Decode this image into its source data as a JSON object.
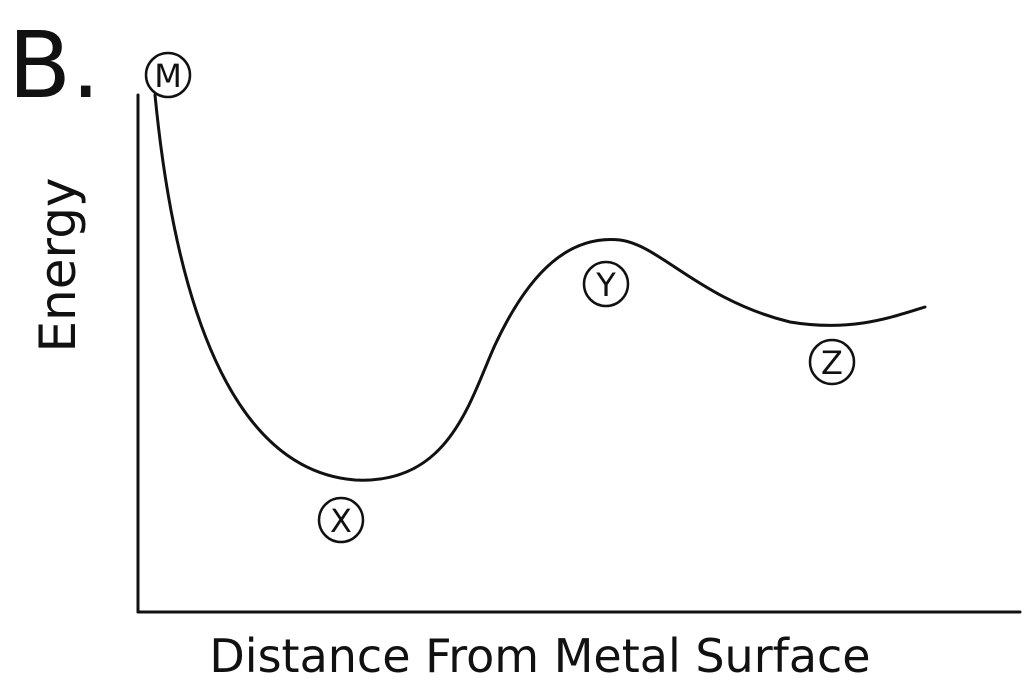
{
  "panel_label": "B.",
  "axes": {
    "y_label": "Energy",
    "x_label": "Distance From Metal Surface"
  },
  "points": [
    {
      "label": "M"
    },
    {
      "label": "X"
    },
    {
      "label": "Y"
    },
    {
      "label": "Z"
    }
  ]
}
